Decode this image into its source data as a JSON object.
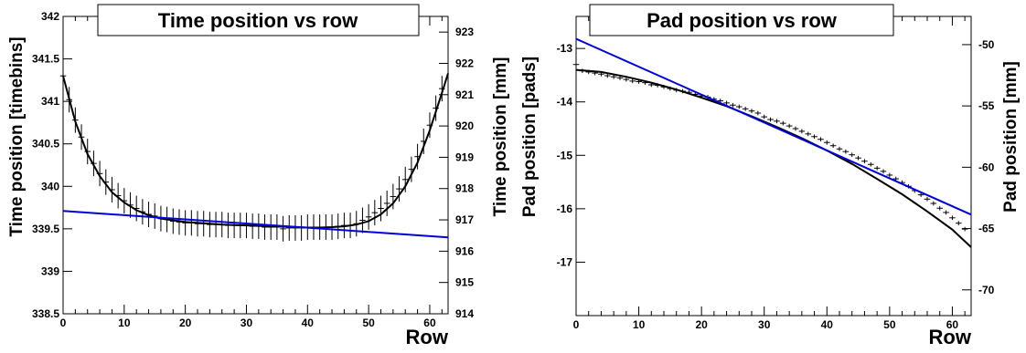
{
  "chart_data": [
    {
      "type": "scatter",
      "title": "Time position vs row",
      "xlabel": "Row",
      "ylabel": "Time position [timebins]",
      "y2label": "Time position [mm]",
      "xlim": [
        0,
        63
      ],
      "ylim": [
        338.5,
        342
      ],
      "y2lim": [
        914,
        923.5
      ],
      "xticks": [
        "0",
        "10",
        "20",
        "30",
        "40",
        "50",
        "60"
      ],
      "yticks": [
        "338.5",
        "339",
        "339.5",
        "340",
        "340.5",
        "341",
        "341.5",
        "342"
      ],
      "y2ticks": [
        "914",
        "915",
        "916",
        "917",
        "918",
        "919",
        "920",
        "921",
        "922",
        "923"
      ],
      "colors": {
        "data": "#000000",
        "fit": "#000000",
        "linear": "#0000dd"
      },
      "series": [
        {
          "kind": "points-with-errors",
          "x": [
            0,
            1,
            2,
            3,
            4,
            5,
            6,
            7,
            8,
            9,
            10,
            11,
            12,
            13,
            14,
            15,
            16,
            17,
            18,
            19,
            20,
            21,
            22,
            23,
            24,
            25,
            26,
            27,
            28,
            29,
            30,
            31,
            32,
            33,
            34,
            35,
            36,
            37,
            38,
            39,
            40,
            41,
            42,
            43,
            44,
            45,
            46,
            47,
            48,
            49,
            50,
            51,
            52,
            53,
            54,
            55,
            56,
            57,
            58,
            59,
            60,
            61,
            62
          ],
          "y": [
            341.3,
            341.02,
            340.78,
            340.58,
            340.41,
            340.27,
            340.15,
            340.05,
            339.96,
            339.89,
            339.83,
            339.78,
            339.74,
            339.7,
            339.67,
            339.65,
            339.62,
            339.61,
            339.59,
            339.58,
            339.57,
            339.57,
            339.56,
            339.56,
            339.55,
            339.55,
            339.55,
            339.54,
            339.54,
            339.54,
            339.54,
            339.53,
            339.53,
            339.52,
            339.52,
            339.52,
            339.5,
            339.51,
            339.51,
            339.51,
            339.52,
            339.52,
            339.52,
            339.52,
            339.52,
            339.53,
            339.54,
            339.54,
            339.56,
            339.6,
            339.64,
            339.69,
            339.74,
            339.8,
            339.88,
            339.97,
            340.08,
            340.2,
            340.35,
            340.53,
            340.72,
            340.92,
            341.15
          ],
          "yerr": 0.15
        },
        {
          "kind": "fit-curve",
          "x": [
            0,
            2,
            4,
            6,
            8,
            10,
            12,
            14,
            16,
            18,
            20,
            22,
            24,
            26,
            28,
            30,
            32,
            34,
            36,
            38,
            40,
            42,
            44,
            46,
            48,
            50,
            52,
            54,
            56,
            58,
            60,
            62,
            63
          ],
          "y": [
            341.3,
            340.76,
            340.38,
            340.12,
            339.93,
            339.81,
            339.72,
            339.66,
            339.62,
            339.6,
            339.58,
            339.57,
            339.56,
            339.55,
            339.545,
            339.54,
            339.535,
            339.53,
            339.525,
            339.52,
            339.515,
            339.515,
            339.52,
            339.53,
            339.55,
            339.59,
            339.67,
            339.8,
            340.0,
            340.28,
            340.66,
            341.1,
            341.33
          ]
        },
        {
          "kind": "linear-fit",
          "x": [
            0,
            63
          ],
          "y": [
            339.71,
            339.4
          ]
        }
      ]
    },
    {
      "type": "scatter",
      "title": "Pad position vs row",
      "xlabel": "Row",
      "ylabel": "Pad position [pads]",
      "y2label": "Pad position [mm]",
      "xlim": [
        0,
        63
      ],
      "ylim": [
        -18,
        -12.4
      ],
      "y2lim": [
        -72.1,
        -47.7
      ],
      "xticks": [
        "0",
        "10",
        "20",
        "30",
        "40",
        "50",
        "60"
      ],
      "yticks": [
        "-13",
        "-14",
        "-15",
        "-16",
        "-17"
      ],
      "y2ticks": [
        "-50",
        "-55",
        "-60",
        "-65",
        "-70"
      ],
      "colors": {
        "data": "#000000",
        "fit": "#000000",
        "linear": "#0000dd"
      },
      "series": [
        {
          "kind": "points-with-errors",
          "x": [
            0,
            1,
            2,
            3,
            4,
            5,
            6,
            7,
            8,
            9,
            10,
            11,
            12,
            13,
            14,
            15,
            16,
            17,
            18,
            19,
            20,
            21,
            22,
            23,
            24,
            25,
            26,
            27,
            28,
            29,
            30,
            31,
            32,
            33,
            34,
            35,
            36,
            37,
            38,
            39,
            40,
            41,
            42,
            43,
            44,
            45,
            46,
            47,
            48,
            49,
            50,
            51,
            52,
            53,
            54,
            55,
            56,
            57,
            58,
            59,
            60,
            61,
            62
          ],
          "y": [
            -13.3,
            -13.42,
            -13.44,
            -13.46,
            -13.48,
            -13.51,
            -13.53,
            -13.55,
            -13.58,
            -13.61,
            -13.62,
            -13.64,
            -13.68,
            -13.69,
            -13.72,
            -13.75,
            -13.78,
            -13.8,
            -13.82,
            -13.86,
            -13.89,
            -13.91,
            -13.95,
            -13.98,
            -14.02,
            -14.06,
            -14.09,
            -14.13,
            -14.17,
            -14.21,
            -14.28,
            -14.33,
            -14.36,
            -14.4,
            -14.45,
            -14.5,
            -14.55,
            -14.6,
            -14.65,
            -14.7,
            -14.76,
            -14.82,
            -14.88,
            -14.93,
            -14.99,
            -15.05,
            -15.11,
            -15.17,
            -15.24,
            -15.3,
            -15.37,
            -15.44,
            -15.51,
            -15.58,
            -15.66,
            -15.74,
            -15.82,
            -15.9,
            -15.99,
            -16.07,
            -16.17,
            -16.27,
            -16.38
          ],
          "yerr": 0.04
        },
        {
          "kind": "fit-curve",
          "x": [
            0,
            4,
            8,
            12,
            16,
            20,
            24,
            28,
            32,
            36,
            40,
            44,
            48,
            52,
            56,
            60,
            63
          ],
          "y": [
            -13.4,
            -13.44,
            -13.53,
            -13.64,
            -13.77,
            -13.92,
            -14.08,
            -14.27,
            -14.47,
            -14.68,
            -14.91,
            -15.16,
            -15.44,
            -15.73,
            -16.05,
            -16.39,
            -16.72
          ]
        },
        {
          "kind": "linear-fit",
          "x": [
            0,
            63
          ],
          "y": [
            -12.82,
            -16.11
          ]
        }
      ]
    }
  ]
}
